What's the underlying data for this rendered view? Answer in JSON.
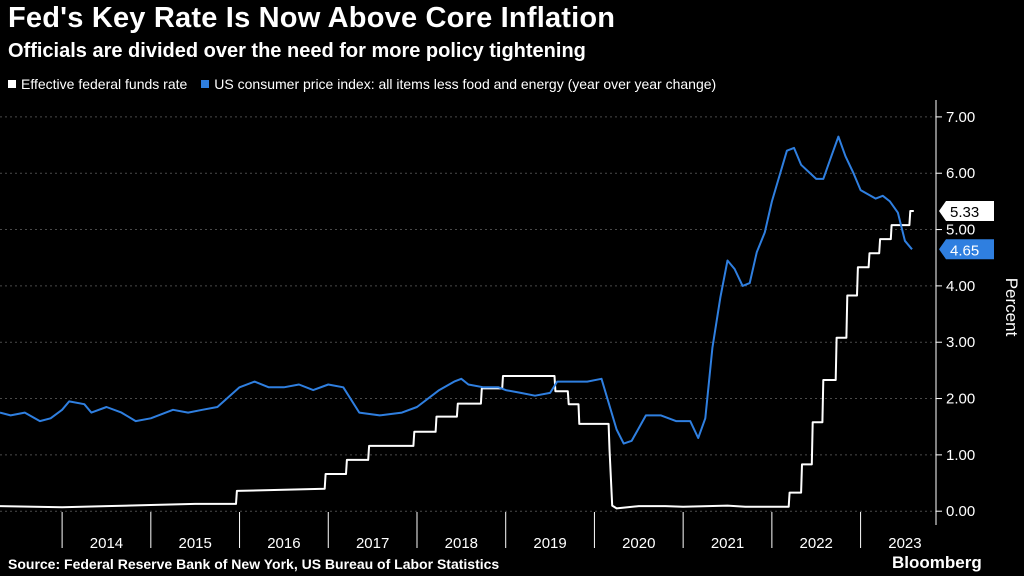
{
  "header": {
    "title": "Fed's Key Rate Is Now Above Core Inflation",
    "subtitle": "Officials are divided over the need for more policy tightening"
  },
  "footer": {
    "source": "Source: Federal Reserve Bank of New York, US Bureau of Labor Statistics",
    "brand": "Bloomberg"
  },
  "colors": {
    "background": "#000000",
    "fed_funds": "#ffffff",
    "core_cpi": "#2f7fe0",
    "grid": "#444444"
  },
  "chart_data": {
    "type": "line",
    "ylabel": "Percent",
    "ylim": [
      -0.6,
      7.3
    ],
    "yticks": [
      0,
      1,
      2,
      3,
      4,
      5,
      6,
      7
    ],
    "ytick_labels": [
      "0.00",
      "1.00",
      "2.00",
      "3.00",
      "4.00",
      "5.00",
      "6.00",
      "7.00"
    ],
    "xlim": [
      2013.3,
      2023.85
    ],
    "xtick_labels": [
      "2014",
      "2015",
      "2016",
      "2017",
      "2018",
      "2019",
      "2020",
      "2021",
      "2022",
      "2023"
    ],
    "year_boundaries": [
      2014,
      2015,
      2016,
      2017,
      2018,
      2019,
      2020,
      2021,
      2022,
      2023
    ],
    "grid": true,
    "legend_position": "top-left",
    "series": [
      {
        "name": "Effective federal funds rate",
        "color": "#ffffff",
        "step": true,
        "last_value_label": "5.33",
        "points": [
          [
            2013.3,
            0.09
          ],
          [
            2014.0,
            0.07
          ],
          [
            2014.5,
            0.09
          ],
          [
            2015.0,
            0.11
          ],
          [
            2015.5,
            0.13
          ],
          [
            2015.96,
            0.13
          ],
          [
            2015.97,
            0.36
          ],
          [
            2016.96,
            0.4
          ],
          [
            2016.97,
            0.66
          ],
          [
            2017.2,
            0.66
          ],
          [
            2017.21,
            0.91
          ],
          [
            2017.45,
            0.91
          ],
          [
            2017.46,
            1.16
          ],
          [
            2017.96,
            1.16
          ],
          [
            2017.97,
            1.41
          ],
          [
            2018.21,
            1.41
          ],
          [
            2018.22,
            1.68
          ],
          [
            2018.45,
            1.68
          ],
          [
            2018.46,
            1.91
          ],
          [
            2018.72,
            1.91
          ],
          [
            2018.73,
            2.18
          ],
          [
            2018.96,
            2.18
          ],
          [
            2018.97,
            2.4
          ],
          [
            2019.55,
            2.4
          ],
          [
            2019.56,
            2.13
          ],
          [
            2019.7,
            2.13
          ],
          [
            2019.71,
            1.9
          ],
          [
            2019.82,
            1.9
          ],
          [
            2019.83,
            1.55
          ],
          [
            2020.16,
            1.55
          ],
          [
            2020.17,
            1.1
          ],
          [
            2020.2,
            0.1
          ],
          [
            2020.25,
            0.05
          ],
          [
            2020.5,
            0.09
          ],
          [
            2020.8,
            0.09
          ],
          [
            2021.0,
            0.08
          ],
          [
            2021.5,
            0.1
          ],
          [
            2021.7,
            0.08
          ],
          [
            2022.19,
            0.08
          ],
          [
            2022.2,
            0.33
          ],
          [
            2022.33,
            0.33
          ],
          [
            2022.34,
            0.83
          ],
          [
            2022.45,
            0.83
          ],
          [
            2022.46,
            1.58
          ],
          [
            2022.57,
            1.58
          ],
          [
            2022.58,
            2.33
          ],
          [
            2022.72,
            2.33
          ],
          [
            2022.73,
            3.08
          ],
          [
            2022.84,
            3.08
          ],
          [
            2022.85,
            3.83
          ],
          [
            2022.96,
            3.83
          ],
          [
            2022.97,
            4.33
          ],
          [
            2023.09,
            4.33
          ],
          [
            2023.1,
            4.58
          ],
          [
            2023.21,
            4.58
          ],
          [
            2023.22,
            4.83
          ],
          [
            2023.34,
            4.83
          ],
          [
            2023.35,
            5.08
          ],
          [
            2023.55,
            5.08
          ],
          [
            2023.56,
            5.33
          ],
          [
            2023.6,
            5.33
          ]
        ]
      },
      {
        "name": "US consumer price index: all items less food and energy (year over year change)",
        "color": "#2f7fe0",
        "step": false,
        "last_value_label": "4.65",
        "points": [
          [
            2013.3,
            1.75
          ],
          [
            2013.42,
            1.7
          ],
          [
            2013.58,
            1.75
          ],
          [
            2013.75,
            1.6
          ],
          [
            2013.87,
            1.65
          ],
          [
            2014.0,
            1.8
          ],
          [
            2014.08,
            1.95
          ],
          [
            2014.25,
            1.9
          ],
          [
            2014.33,
            1.75
          ],
          [
            2014.5,
            1.85
          ],
          [
            2014.67,
            1.75
          ],
          [
            2014.83,
            1.6
          ],
          [
            2015.0,
            1.65
          ],
          [
            2015.25,
            1.8
          ],
          [
            2015.42,
            1.75
          ],
          [
            2015.58,
            1.8
          ],
          [
            2015.75,
            1.85
          ],
          [
            2016.0,
            2.2
          ],
          [
            2016.17,
            2.3
          ],
          [
            2016.33,
            2.2
          ],
          [
            2016.5,
            2.2
          ],
          [
            2016.67,
            2.25
          ],
          [
            2016.83,
            2.15
          ],
          [
            2017.0,
            2.25
          ],
          [
            2017.17,
            2.2
          ],
          [
            2017.35,
            1.75
          ],
          [
            2017.58,
            1.7
          ],
          [
            2017.83,
            1.75
          ],
          [
            2018.0,
            1.85
          ],
          [
            2018.25,
            2.15
          ],
          [
            2018.42,
            2.3
          ],
          [
            2018.5,
            2.35
          ],
          [
            2018.58,
            2.25
          ],
          [
            2018.75,
            2.2
          ],
          [
            2018.92,
            2.2
          ],
          [
            2019.0,
            2.15
          ],
          [
            2019.17,
            2.1
          ],
          [
            2019.33,
            2.05
          ],
          [
            2019.5,
            2.1
          ],
          [
            2019.58,
            2.3
          ],
          [
            2019.75,
            2.3
          ],
          [
            2019.92,
            2.3
          ],
          [
            2020.08,
            2.35
          ],
          [
            2020.25,
            1.45
          ],
          [
            2020.33,
            1.2
          ],
          [
            2020.42,
            1.25
          ],
          [
            2020.58,
            1.7
          ],
          [
            2020.75,
            1.7
          ],
          [
            2020.92,
            1.6
          ],
          [
            2021.08,
            1.6
          ],
          [
            2021.17,
            1.3
          ],
          [
            2021.25,
            1.65
          ],
          [
            2021.33,
            2.9
          ],
          [
            2021.42,
            3.8
          ],
          [
            2021.5,
            4.45
          ],
          [
            2021.58,
            4.3
          ],
          [
            2021.67,
            4.0
          ],
          [
            2021.75,
            4.05
          ],
          [
            2021.83,
            4.6
          ],
          [
            2021.92,
            4.95
          ],
          [
            2022.0,
            5.5
          ],
          [
            2022.17,
            6.4
          ],
          [
            2022.25,
            6.45
          ],
          [
            2022.33,
            6.15
          ],
          [
            2022.5,
            5.9
          ],
          [
            2022.58,
            5.9
          ],
          [
            2022.67,
            6.3
          ],
          [
            2022.75,
            6.65
          ],
          [
            2022.83,
            6.3
          ],
          [
            2022.92,
            6.0
          ],
          [
            2023.0,
            5.7
          ],
          [
            2023.17,
            5.55
          ],
          [
            2023.25,
            5.6
          ],
          [
            2023.33,
            5.5
          ],
          [
            2023.42,
            5.3
          ],
          [
            2023.5,
            4.8
          ],
          [
            2023.58,
            4.65
          ]
        ]
      }
    ]
  }
}
